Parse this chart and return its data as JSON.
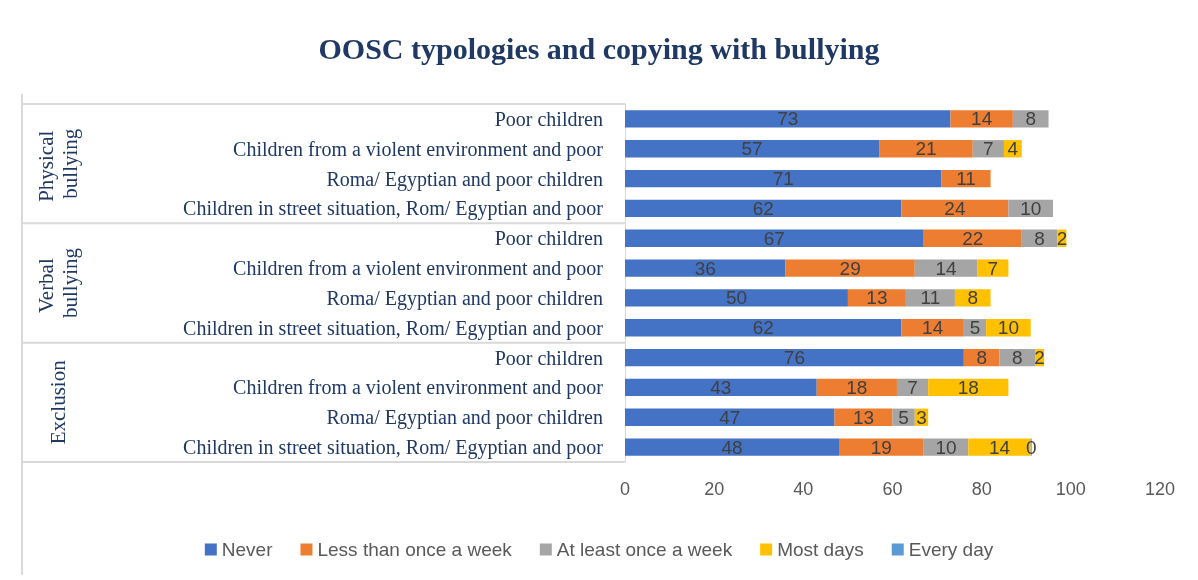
{
  "chart_data": {
    "type": "bar",
    "orientation": "horizontal",
    "stacked": true,
    "title": "OOSC typologies and copying with bullying",
    "categories": [
      "Poor children",
      "Children from a violent environment and poor",
      "Roma/ Egyptian and poor children",
      "Children in street situation, Rom/ Egyptian and poor",
      "Poor children",
      "Children from a violent environment and poor",
      "Roma/ Egyptian and poor children",
      "Children in street situation, Rom/ Egyptian and poor",
      "Poor children",
      "Children from a violent environment and poor",
      "Roma/ Egyptian and poor children",
      "Children in street situation, Rom/ Egyptian and poor"
    ],
    "series": [
      {
        "name": "Never",
        "color": "#4472c4",
        "values": [
          73,
          57,
          71,
          62,
          67,
          36,
          50,
          62,
          76,
          43,
          47,
          48
        ]
      },
      {
        "name": "Less than once a week",
        "color": "#ed7d31",
        "values": [
          14,
          21,
          11,
          24,
          22,
          29,
          13,
          14,
          8,
          18,
          13,
          19
        ]
      },
      {
        "name": "At least once a week",
        "color": "#a5a5a5",
        "values": [
          8,
          7,
          null,
          10,
          8,
          14,
          11,
          5,
          8,
          7,
          5,
          10
        ]
      },
      {
        "name": "Most days",
        "color": "#ffc000",
        "values": [
          null,
          4,
          null,
          null,
          2,
          7,
          8,
          10,
          2,
          18,
          3,
          14
        ]
      },
      {
        "name": "Every day",
        "color": "#5b9bd5",
        "values": [
          null,
          null,
          null,
          null,
          null,
          null,
          null,
          null,
          null,
          null,
          null,
          0
        ]
      }
    ],
    "xlim": [
      0,
      120
    ],
    "xticks": [
      0,
      20,
      40,
      60,
      80,
      100,
      120
    ],
    "annotations": [
      "Physical bullying",
      "Verbal bullying",
      "Exclusion"
    ],
    "data_labels": true,
    "legend": "bottom",
    "grid": false
  }
}
